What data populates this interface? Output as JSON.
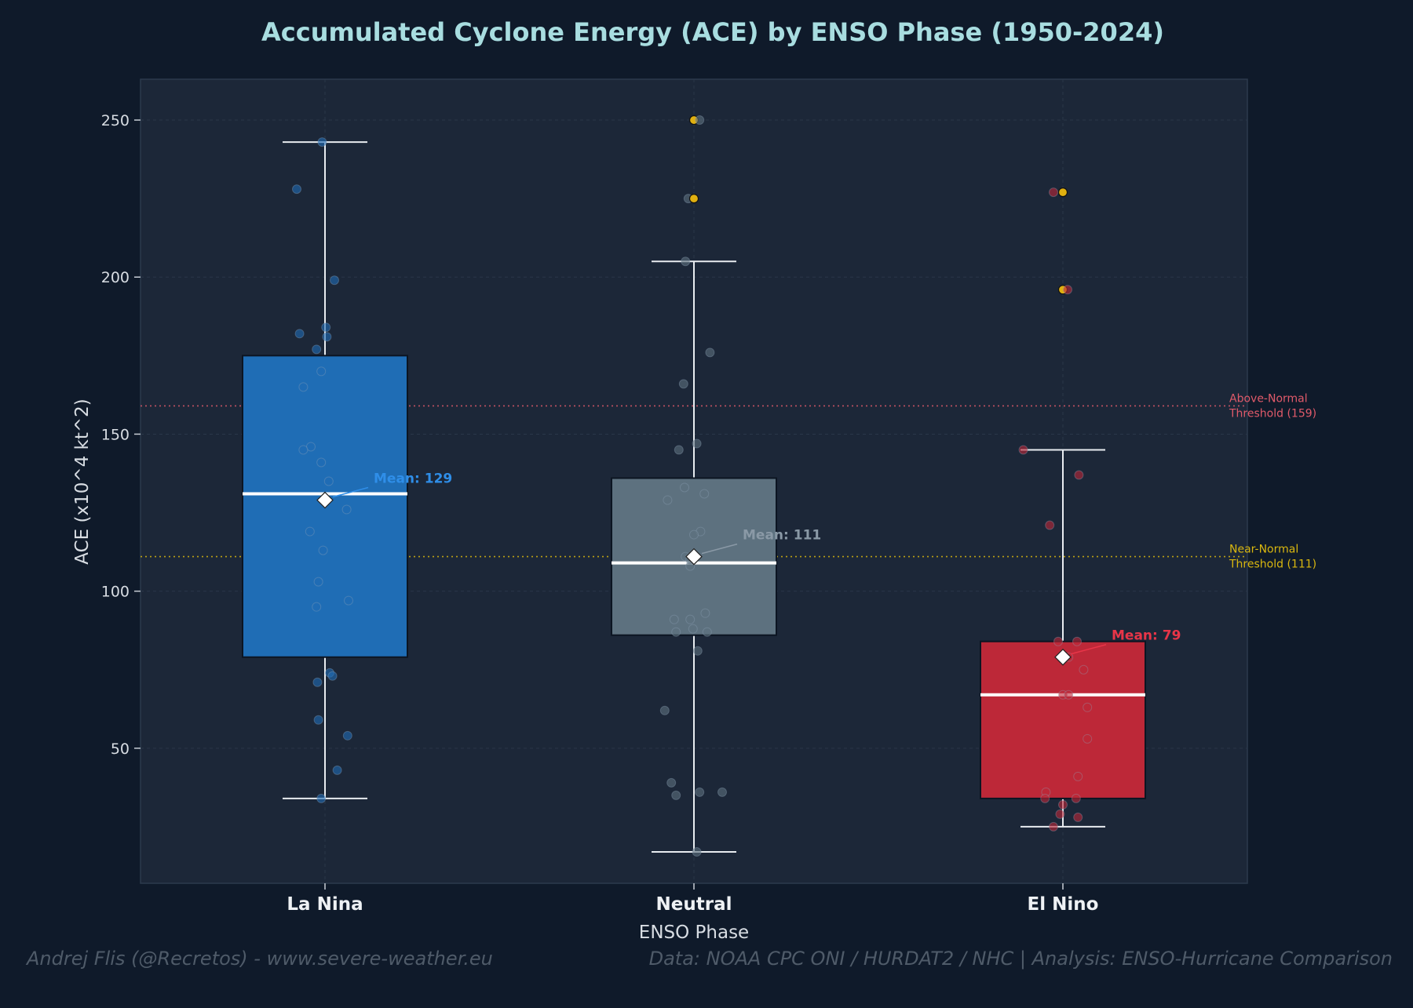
{
  "colors": {
    "background": "#0f1a2a",
    "plot_background": "#1c2738",
    "title": "#a8dde0",
    "axis_text": "#d8dde3",
    "la_nina": "#1f6db5",
    "neutral": "#5d717f",
    "el_nino": "#bd2838",
    "outlier_highlight": "#e0b010",
    "above_normal": "#e05a6a",
    "near_normal": "#d9b70f"
  },
  "chart_data": {
    "type": "box",
    "title": "Accumulated Cyclone Energy (ACE) by ENSO Phase (1950-2024)",
    "xlabel": "ENSO Phase",
    "ylabel": "ACE (x10^4 kt^2)",
    "ylim": [
      7,
      263
    ],
    "yticks": [
      "50",
      "100",
      "150",
      "200",
      "250"
    ],
    "grid": true,
    "categories": [
      "La Nina",
      "Neutral",
      "El Nino"
    ],
    "boxes": [
      {
        "name": "La Nina",
        "color": "#1f6db5",
        "mean_label": "Mean: 129",
        "mean_color": "#2f8ee8",
        "whisker_low": 34,
        "q1": 79,
        "median": 131,
        "q3": 175,
        "whisker_high": 243,
        "mean": 129,
        "points": [
          [
            -0.03,
            243
          ],
          [
            -0.3,
            228
          ],
          [
            0.1,
            199
          ],
          [
            -0.27,
            182
          ],
          [
            0.01,
            184
          ],
          [
            0.02,
            181
          ],
          [
            -0.09,
            177
          ],
          [
            -0.04,
            170
          ],
          [
            -0.23,
            165
          ],
          [
            -0.15,
            146
          ],
          [
            -0.23,
            145
          ],
          [
            -0.04,
            141
          ],
          [
            0.04,
            135
          ],
          [
            0.23,
            126
          ],
          [
            -0.16,
            119
          ],
          [
            -0.02,
            113
          ],
          [
            -0.07,
            103
          ],
          [
            0.25,
            97
          ],
          [
            -0.09,
            95
          ],
          [
            -0.08,
            71
          ],
          [
            0.05,
            74
          ],
          [
            0.08,
            73
          ],
          [
            -0.07,
            59
          ],
          [
            0.24,
            54
          ],
          [
            0.13,
            43
          ],
          [
            -0.04,
            34
          ]
        ]
      },
      {
        "name": "Neutral",
        "color": "#5d717f",
        "mean_label": "Mean: 111",
        "mean_color": "#8a99a6",
        "whisker_low": 17,
        "q1": 86,
        "median": 109,
        "q3": 136,
        "whisker_high": 205,
        "mean": 111,
        "points": [
          [
            0.0,
            250,
            "hl"
          ],
          [
            0.06,
            250
          ],
          [
            -0.06,
            225
          ],
          [
            0.0,
            225,
            "hl"
          ],
          [
            -0.09,
            205
          ],
          [
            0.17,
            176
          ],
          [
            -0.11,
            166
          ],
          [
            -0.16,
            145
          ],
          [
            0.03,
            147
          ],
          [
            -0.1,
            133
          ],
          [
            0.11,
            131
          ],
          [
            -0.28,
            129
          ],
          [
            0.07,
            119
          ],
          [
            0.0,
            118
          ],
          [
            -0.09,
            111
          ],
          [
            -0.04,
            110
          ],
          [
            -0.04,
            108
          ],
          [
            0.12,
            93
          ],
          [
            -0.21,
            91
          ],
          [
            -0.04,
            91
          ],
          [
            -0.19,
            87
          ],
          [
            -0.01,
            88
          ],
          [
            0.14,
            87
          ],
          [
            0.04,
            81
          ],
          [
            -0.31,
            62
          ],
          [
            -0.24,
            39
          ],
          [
            -0.19,
            35
          ],
          [
            0.06,
            36
          ],
          [
            0.3,
            36
          ],
          [
            0.03,
            17
          ]
        ]
      },
      {
        "name": "El Nino",
        "color": "#bd2838",
        "mean_label": "Mean: 79",
        "mean_color": "#e83548",
        "whisker_low": 25,
        "q1": 34,
        "median": 67,
        "q3": 84,
        "whisker_high": 145,
        "mean": 79,
        "points": [
          [
            -0.1,
            227
          ],
          [
            0.0,
            227,
            "hl"
          ],
          [
            0.0,
            196,
            "hl"
          ],
          [
            0.05,
            196
          ],
          [
            -0.42,
            145
          ],
          [
            0.17,
            137
          ],
          [
            -0.14,
            121
          ],
          [
            0.15,
            84
          ],
          [
            -0.05,
            84
          ],
          [
            0.06,
            79
          ],
          [
            0.22,
            75
          ],
          [
            0.0,
            67
          ],
          [
            0.06,
            67
          ],
          [
            0.26,
            63
          ],
          [
            0.26,
            53
          ],
          [
            0.16,
            41
          ],
          [
            -0.18,
            36
          ],
          [
            -0.19,
            34
          ],
          [
            0.0,
            32
          ],
          [
            0.14,
            34
          ],
          [
            -0.03,
            29
          ],
          [
            0.16,
            28
          ],
          [
            -0.1,
            25
          ]
        ]
      }
    ],
    "thresholds": [
      {
        "name": "Above-Normal Threshold (159)",
        "line1": "Above-Normal",
        "line2": "Threshold (159)",
        "value": 159,
        "color": "#e05a6a",
        "style": "dotted"
      },
      {
        "name": "Near-Normal Threshold (111)",
        "line1": "Near-Normal",
        "line2": "Threshold (111)",
        "value": 111,
        "color": "#d9b70f",
        "style": "dotted"
      }
    ]
  },
  "footer": {
    "left": "Andrej Flis (@Recretos) - www.severe-weather.eu",
    "right": "Data: NOAA CPC ONI / HURDAT2 / NHC  |  Analysis: ENSO-Hurricane Comparison"
  }
}
